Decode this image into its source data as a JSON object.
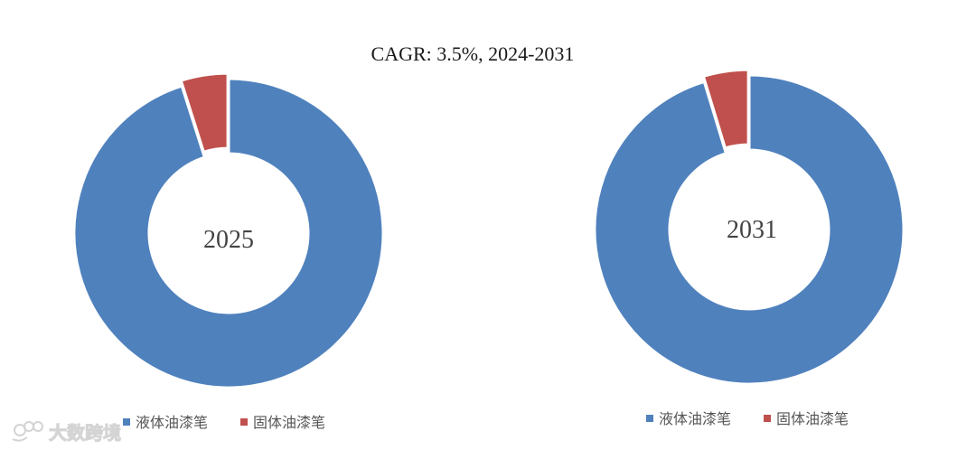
{
  "title": "CAGR:   3.5%, 2024-2031",
  "colors": {
    "liquid": "#4f81bd",
    "solid": "#c0504d"
  },
  "watermark": {
    "text": "大数跨境",
    "logo_icon": "handshake-logo-icon"
  },
  "chart_data": [
    {
      "type": "pie",
      "donut": true,
      "center_label": "2025",
      "categories": [
        "液体油漆笔",
        "固体油漆笔"
      ],
      "values": [
        95.1,
        4.9
      ],
      "legend": "bottom"
    },
    {
      "type": "pie",
      "donut": true,
      "center_label": "2031",
      "categories": [
        "液体油漆笔",
        "固体油漆笔"
      ],
      "values": [
        95.3,
        4.7
      ],
      "legend": "bottom"
    }
  ]
}
